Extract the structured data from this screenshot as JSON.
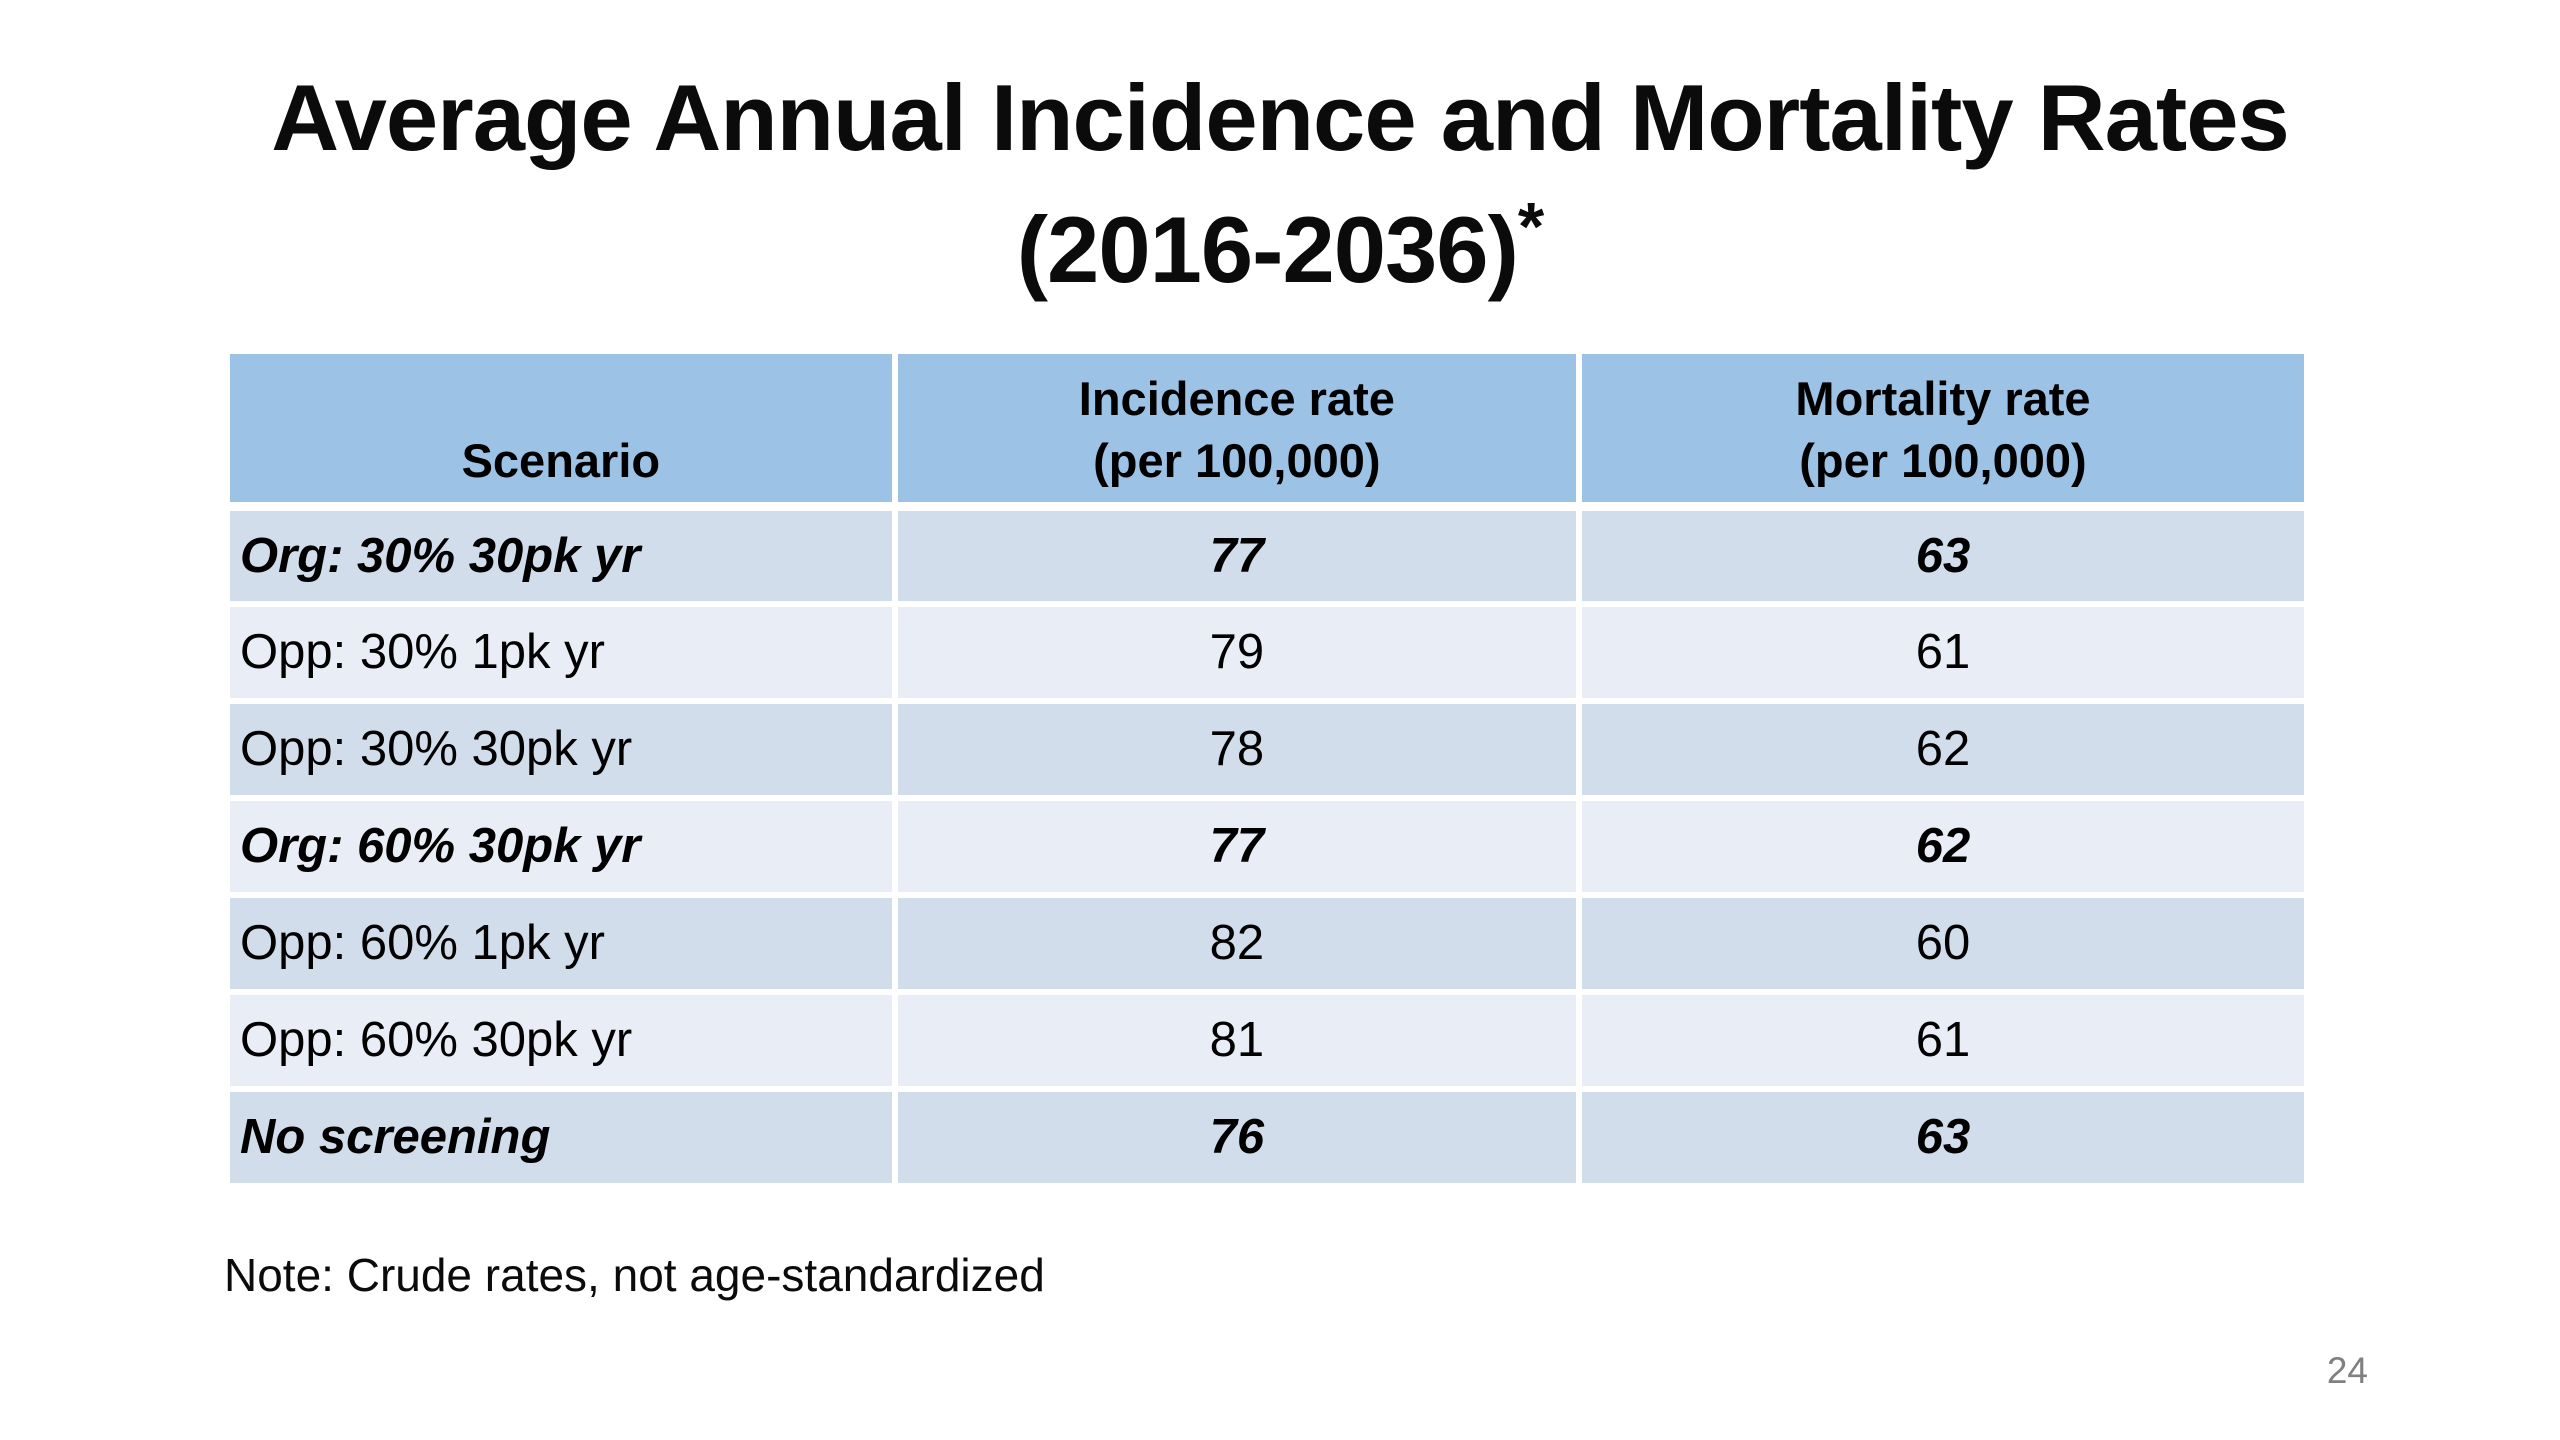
{
  "slide": {
    "title_line1": "Average Annual Incidence and Mortality Rates",
    "title_line2": "(2016-2036)",
    "title_superscript": "*",
    "note": "Note: Crude rates, not age-standardized",
    "page_number": "24"
  },
  "table": {
    "header": {
      "scenario": "Scenario",
      "incidence_line1": "Incidence rate",
      "incidence_line2": "(per 100,000)",
      "mortality_line1": "Mortality rate",
      "mortality_line2": "(per 100,000)"
    },
    "rows": [
      {
        "scenario": "Org: 30% 30pk yr",
        "incidence": "77",
        "mortality": "63",
        "emphasis": true
      },
      {
        "scenario": "Opp: 30% 1pk yr",
        "incidence": "79",
        "mortality": "61",
        "emphasis": false
      },
      {
        "scenario": "Opp: 30% 30pk yr",
        "incidence": "78",
        "mortality": "62",
        "emphasis": false
      },
      {
        "scenario": "Org: 60% 30pk yr",
        "incidence": "77",
        "mortality": "62",
        "emphasis": true
      },
      {
        "scenario": "Opp: 60% 1pk yr",
        "incidence": "82",
        "mortality": "60",
        "emphasis": false
      },
      {
        "scenario": "Opp: 60% 30pk yr",
        "incidence": "81",
        "mortality": "61",
        "emphasis": false
      },
      {
        "scenario": "No screening",
        "incidence": "76",
        "mortality": "63",
        "emphasis": true
      }
    ]
  },
  "chart_data": {
    "type": "table",
    "title": "Average Annual Incidence and Mortality Rates (2016-2036)",
    "columns": [
      "Scenario",
      "Incidence rate (per 100,000)",
      "Mortality rate (per 100,000)"
    ],
    "rows": [
      [
        "Org: 30% 30pk yr",
        77,
        63
      ],
      [
        "Opp: 30% 1pk yr",
        79,
        61
      ],
      [
        "Opp: 30% 30pk yr",
        78,
        62
      ],
      [
        "Org: 60% 30pk yr",
        77,
        62
      ],
      [
        "Opp: 60% 1pk yr",
        82,
        60
      ],
      [
        "Opp: 60% 30pk yr",
        81,
        61
      ],
      [
        "No screening",
        76,
        63
      ]
    ],
    "note": "Note: Crude rates, not age-standardized"
  },
  "colors": {
    "header_bg": "#9CC2E5",
    "band_dark": "#D2DDEC",
    "band_light": "#E9EDF5",
    "grid": "#FFFFFF",
    "page_color": "#808080"
  }
}
